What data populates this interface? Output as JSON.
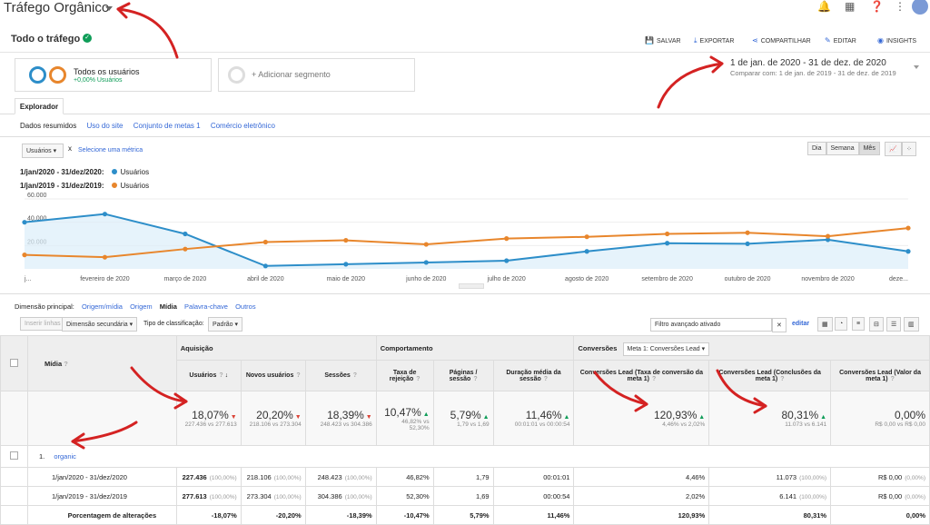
{
  "app": {
    "title": "Tráfego Orgânico"
  },
  "header": {
    "subtitle": "Todo o tráfego",
    "actions": [
      "SALVAR",
      "EXPORTAR",
      "COMPARTILHAR",
      "EDITAR",
      "INSIGHTS"
    ]
  },
  "segments": {
    "seg1_name": "Todos os usuários",
    "seg1_pct": "+0,00% Usuários",
    "add": "+ Adicionar segmento"
  },
  "daterange": {
    "main": "1 de jan. de 2020 - 31 de dez. de 2020",
    "compare": "Comparar com: 1 de jan. de 2019 - 31 de dez. de 2019"
  },
  "tabs": {
    "explorer": "Explorador",
    "sub": [
      "Dados resumidos",
      "Uso do site",
      "Conjunto de metas 1",
      "Comércio eletrônico"
    ]
  },
  "chart_controls": {
    "metric": "Usuários",
    "x": "x",
    "select": "Selecione uma métrica",
    "periods": [
      "Dia",
      "Semana",
      "Mês"
    ]
  },
  "chart_legend": [
    {
      "period": "1/jan/2020 - 31/dez/2020:",
      "label": "Usuários",
      "color": "#2d8ec9"
    },
    {
      "period": "1/jan/2019 - 31/dez/2019:",
      "label": "Usuários",
      "color": "#e8862c"
    }
  ],
  "chart_data": {
    "type": "line",
    "categories": [
      "j...",
      "fevereiro de 2020",
      "março de 2020",
      "abril de 2020",
      "maio de 2020",
      "junho de 2020",
      "julho de 2020",
      "agosto de 2020",
      "setembro de 2020",
      "outubro de 2020",
      "novembro de 2020",
      "deze..."
    ],
    "yticks": [
      "60.000",
      "40.000",
      "20.000"
    ],
    "ylim": [
      0,
      60000
    ],
    "series": [
      {
        "name": "Usuários",
        "color": "#2d8ec9",
        "values": [
          40000,
          47000,
          30000,
          2500,
          4000,
          5500,
          7000,
          15000,
          22000,
          21500,
          25000,
          15000
        ]
      },
      {
        "name": "Usuários",
        "color": "#e8862c",
        "values": [
          12000,
          10000,
          17000,
          23000,
          24500,
          21000,
          26000,
          27500,
          30000,
          31000,
          28000,
          35000
        ]
      }
    ]
  },
  "dimension": {
    "label": "Dimensão principal:",
    "items": [
      "Origem/mídia",
      "Origem",
      "Mídia",
      "Palavra-chave",
      "Outros"
    ]
  },
  "controls": {
    "plot": "Inserir linhas",
    "secondary": "Dimensão secundária",
    "sort_label": "Tipo de classificação:",
    "sort": "Padrão",
    "filter": "Filtro avançado ativado",
    "edit": "editar"
  },
  "table": {
    "dim_header": "Mídia",
    "groups": [
      "Aquisição",
      "Comportamento",
      "Conversões"
    ],
    "conv_select": "Meta 1: Conversões Lead",
    "columns": [
      "Usuários",
      "Novos usuários",
      "Sessões",
      "Taxa de rejeição",
      "Páginas / sessão",
      "Duração média da sessão",
      "Conversões Lead (Taxa de conversão da meta 1)",
      "Conversões Lead (Conclusões da meta 1)",
      "Conversões Lead (Valor da meta 1)"
    ],
    "totals": [
      {
        "v": "18,07%",
        "d": "dn",
        "s": "227.436 vs 277.613"
      },
      {
        "v": "20,20%",
        "d": "dn",
        "s": "218.106 vs 273.304"
      },
      {
        "v": "18,39%",
        "d": "dn",
        "s": "248.423 vs 304.386"
      },
      {
        "v": "10,47%",
        "d": "up",
        "s": "46,82% vs 52,30%"
      },
      {
        "v": "5,79%",
        "d": "up",
        "s": "1,79 vs 1,69"
      },
      {
        "v": "11,46%",
        "d": "up",
        "s": "00:01:01 vs 00:00:54"
      },
      {
        "v": "120,93%",
        "d": "up",
        "s": "4,46% vs 2,02%"
      },
      {
        "v": "80,31%",
        "d": "up",
        "s": "11.073 vs 6.141"
      },
      {
        "v": "0,00%",
        "d": "",
        "s": "R$ 0,00 vs R$ 0,00"
      }
    ],
    "row_index": "1.",
    "row_name": "organic",
    "rows": [
      {
        "label": "1/jan/2020 - 31/dez/2020",
        "cells": [
          "227.436",
          "218.106",
          "248.423",
          "46,82%",
          "1,79",
          "00:01:01",
          "4,46%",
          "11.073",
          "R$ 0,00"
        ],
        "pcts": [
          "(100,00%)",
          "(100,00%)",
          "(100,00%)",
          "",
          "",
          "",
          "",
          "(100,00%)",
          "(0,00%)"
        ]
      },
      {
        "label": "1/jan/2019 - 31/dez/2019",
        "cells": [
          "277.613",
          "273.304",
          "304.386",
          "52,30%",
          "1,69",
          "00:00:54",
          "2,02%",
          "6.141",
          "R$ 0,00"
        ],
        "pcts": [
          "(100,00%)",
          "(100,00%)",
          "(100,00%)",
          "",
          "",
          "",
          "",
          "(100,00%)",
          "(0,00%)"
        ]
      },
      {
        "label": "Porcentagem de alterações",
        "cells": [
          "-18,07%",
          "-20,20%",
          "-18,39%",
          "-10,47%",
          "5,79%",
          "11,46%",
          "120,93%",
          "80,31%",
          "0,00%"
        ],
        "pcts": [
          "",
          "",
          "",
          "",
          "",
          "",
          "",
          "",
          ""
        ]
      }
    ]
  }
}
